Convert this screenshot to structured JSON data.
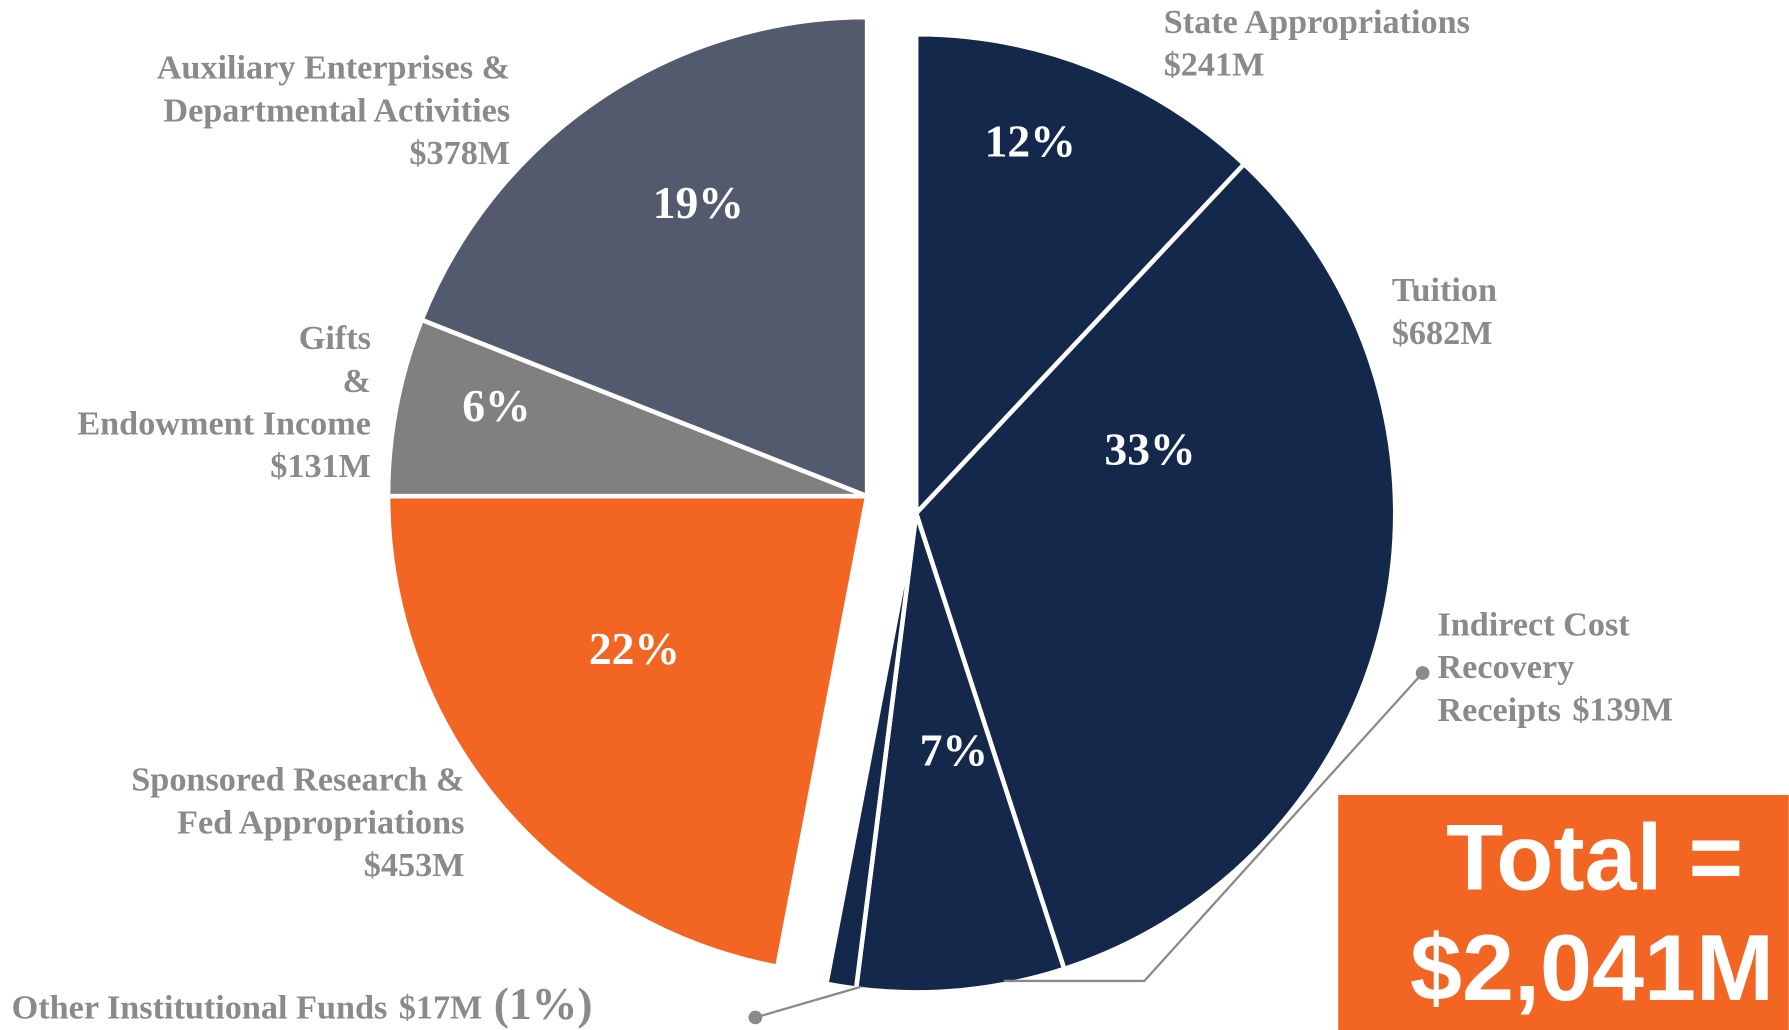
{
  "chart_data": {
    "type": "pie",
    "categories": [
      "State Appropriations",
      "Tuition",
      "Indirect Cost Recovery Receipts",
      "Other Institutional Funds",
      "Sponsored Research & Fed Appropriations",
      "Gifts & Endowment Income",
      "Auxiliary Enterprises & Departmental Activities"
    ],
    "amounts": [
      "$241M",
      "$682M",
      "$139M",
      "$17M",
      "$453M",
      "$131M",
      "$378M"
    ],
    "values": [
      12,
      33,
      7,
      1,
      22,
      6,
      19
    ],
    "value_labels": [
      "12%",
      "33%",
      "7%",
      "(1%)",
      "22%",
      "6%",
      "19%"
    ],
    "colors": [
      "#14284b",
      "#14284b",
      "#14284b",
      "#14284b",
      "#f26522",
      "#808080",
      "#545a6e"
    ],
    "annotation": [
      "Total =",
      "$2,041M"
    ],
    "annotation_color": "#f26522"
  }
}
